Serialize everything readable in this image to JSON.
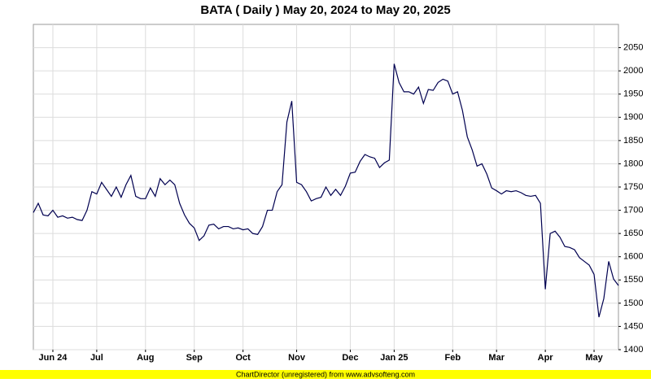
{
  "chart_data": {
    "type": "line",
    "title": "BATA ( Daily ) May 20, 2024 to May 20, 2025",
    "footer": "ChartDirector (unregistered) from www.advsofteng.com",
    "categories": [
      null,
      null,
      null,
      null,
      "Jun 24",
      null,
      null,
      null,
      null,
      null,
      null,
      null,
      null,
      "Jul",
      null,
      null,
      null,
      null,
      null,
      null,
      null,
      null,
      null,
      "Aug",
      null,
      null,
      null,
      null,
      null,
      null,
      null,
      null,
      null,
      "Sep",
      null,
      null,
      null,
      null,
      null,
      null,
      null,
      null,
      null,
      "Oct",
      null,
      null,
      null,
      null,
      null,
      null,
      null,
      null,
      null,
      null,
      "Nov",
      null,
      null,
      null,
      null,
      null,
      null,
      null,
      null,
      null,
      null,
      "Dec",
      null,
      null,
      null,
      null,
      null,
      null,
      null,
      null,
      "Jan 25",
      null,
      null,
      null,
      null,
      null,
      null,
      null,
      null,
      null,
      null,
      null,
      "Feb",
      null,
      null,
      null,
      null,
      null,
      null,
      null,
      null,
      "Mar",
      null,
      null,
      null,
      null,
      null,
      null,
      null,
      null,
      null,
      "Apr",
      null,
      null,
      null,
      null,
      null,
      null,
      null,
      null,
      null,
      "May",
      null,
      null,
      null,
      null,
      null
    ],
    "values": [
      1695,
      1715,
      1690,
      1688,
      1700,
      1685,
      1688,
      1683,
      1685,
      1680,
      1678,
      1700,
      1740,
      1735,
      1760,
      1745,
      1730,
      1750,
      1728,
      1755,
      1775,
      1730,
      1725,
      1725,
      1748,
      1730,
      1768,
      1755,
      1765,
      1755,
      1715,
      1690,
      1672,
      1662,
      1635,
      1645,
      1668,
      1670,
      1660,
      1665,
      1665,
      1660,
      1662,
      1658,
      1660,
      1650,
      1648,
      1665,
      1700,
      1700,
      1740,
      1755,
      1890,
      1935,
      1760,
      1755,
      1740,
      1720,
      1725,
      1728,
      1750,
      1732,
      1745,
      1732,
      1752,
      1780,
      1782,
      1805,
      1820,
      1815,
      1812,
      1792,
      1802,
      1808,
      2015,
      1975,
      1955,
      1955,
      1950,
      1965,
      1930,
      1960,
      1958,
      1975,
      1982,
      1978,
      1950,
      1955,
      1915,
      1858,
      1830,
      1795,
      1800,
      1778,
      1748,
      1742,
      1735,
      1742,
      1740,
      1742,
      1738,
      1732,
      1730,
      1732,
      1715,
      1530,
      1650,
      1655,
      1642,
      1622,
      1620,
      1615,
      1598,
      1590,
      1582,
      1562,
      1470,
      1510,
      1590,
      1552,
      1538
    ],
    "color": "#000050",
    "ylim": [
      1400,
      2100
    ],
    "yticks": [
      1400,
      1450,
      1500,
      1550,
      1600,
      1650,
      1700,
      1750,
      1800,
      1850,
      1900,
      1950,
      2000,
      2050
    ],
    "grid": true
  }
}
